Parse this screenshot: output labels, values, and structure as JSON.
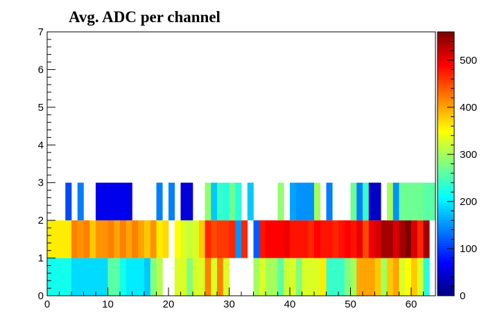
{
  "chart_data": {
    "type": "heatmap",
    "title": "Avg. ADC per channel",
    "xlabel": "",
    "ylabel": "",
    "xlim": [
      0,
      64
    ],
    "ylim": [
      0,
      7
    ],
    "zlim": [
      0,
      560
    ],
    "x_ticks": [
      0,
      10,
      20,
      30,
      40,
      50,
      60
    ],
    "y_ticks": [
      0,
      1,
      2,
      3,
      4,
      5,
      6,
      7
    ],
    "z_ticks": [
      0,
      100,
      200,
      300,
      400,
      500
    ],
    "grid": false,
    "colorbar": "right",
    "palette": [
      "#00007f",
      "#0000ff",
      "#0080ff",
      "#00ffff",
      "#80ff80",
      "#ffff00",
      "#ff8000",
      "#ff0000",
      "#7f0000"
    ],
    "rows": [
      {
        "y_range": [
          0,
          1
        ],
        "values": [
          220,
          220,
          220,
          220,
          190,
          190,
          190,
          190,
          190,
          190,
          260,
          260,
          220,
          200,
          200,
          200,
          180,
          280,
          310,
          null,
          null,
          330,
          330,
          280,
          330,
          330,
          420,
          330,
          420,
          330,
          null,
          null,
          null,
          null,
          300,
          330,
          300,
          300,
          260,
          320,
          330,
          280,
          330,
          330,
          330,
          360,
          240,
          240,
          240,
          280,
          300,
          400,
          400,
          400,
          380,
          300,
          380,
          400,
          330,
          350,
          380,
          330,
          230,
          null
        ]
      },
      {
        "y_range": [
          1,
          2
        ],
        "values": [
          360,
          360,
          360,
          360,
          420,
          410,
          420,
          380,
          410,
          410,
          420,
          400,
          420,
          400,
          420,
          400,
          380,
          410,
          360,
          370,
          null,
          350,
          330,
          320,
          330,
          380,
          470,
          450,
          460,
          460,
          470,
          150,
          470,
          null,
          120,
          480,
          490,
          490,
          490,
          500,
          480,
          480,
          480,
          470,
          490,
          480,
          480,
          470,
          480,
          490,
          480,
          500,
          450,
          500,
          510,
          540,
          540,
          510,
          540,
          560,
          510,
          470,
          540,
          null
        ]
      },
      {
        "y_range": [
          2,
          3
        ],
        "values": [
          null,
          null,
          null,
          110,
          null,
          140,
          null,
          null,
          60,
          60,
          60,
          60,
          60,
          60,
          null,
          null,
          null,
          null,
          140,
          null,
          140,
          null,
          50,
          50,
          null,
          null,
          290,
          180,
          240,
          230,
          270,
          230,
          null,
          180,
          null,
          null,
          null,
          null,
          290,
          null,
          160,
          150,
          150,
          150,
          300,
          null,
          140,
          null,
          null,
          null,
          270,
          140,
          240,
          40,
          40,
          null,
          300,
          150,
          270,
          270,
          270,
          270,
          260,
          260
        ]
      }
    ]
  }
}
